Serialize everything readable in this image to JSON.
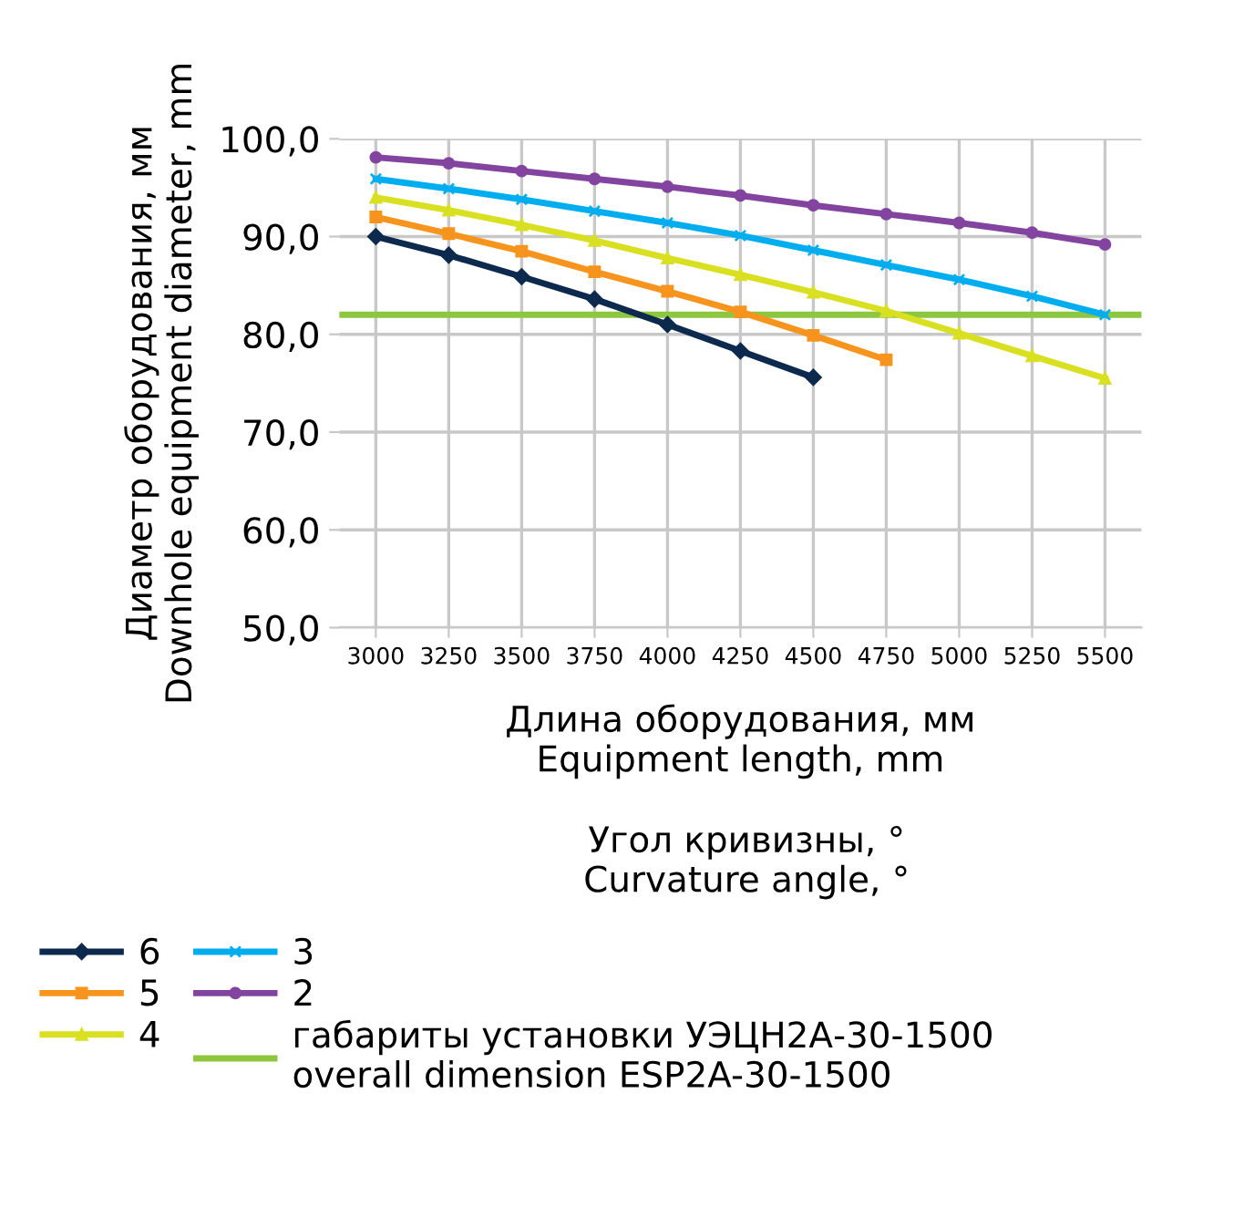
{
  "chart_data": {
    "type": "line",
    "xlabel": "Длина оборудования, мм\nEquipment length, mm",
    "ylabel": "Диаметр оборудования, мм\nDownhole equipment diameter, mm",
    "legend_title": "Угол кривизны, °\nCurvature angle, °",
    "x": [
      3000,
      3250,
      3500,
      3750,
      4000,
      4250,
      4500,
      4750,
      5000,
      5250,
      5500
    ],
    "series": [
      {
        "name": "6",
        "color": "#0d2a4e",
        "marker": "diamond",
        "values": [
          90.0,
          88.1,
          85.9,
          83.6,
          81.0,
          78.3,
          75.6,
          null,
          null,
          null,
          null
        ]
      },
      {
        "name": "5",
        "color": "#f7941d",
        "marker": "square",
        "values": [
          92.0,
          90.3,
          88.5,
          86.4,
          84.4,
          82.3,
          79.9,
          77.4,
          null,
          null,
          null
        ]
      },
      {
        "name": "4",
        "color": "#d9e021",
        "marker": "triangle",
        "values": [
          94.0,
          92.7,
          91.2,
          89.6,
          87.8,
          86.1,
          84.3,
          82.4,
          80.1,
          77.8,
          75.5
        ]
      },
      {
        "name": "3",
        "color": "#00aeef",
        "marker": "cross",
        "values": [
          95.9,
          94.9,
          93.8,
          92.6,
          91.4,
          90.1,
          88.6,
          87.1,
          85.6,
          83.9,
          82.0
        ]
      },
      {
        "name": "2",
        "color": "#8344a0",
        "marker": "circle",
        "values": [
          98.1,
          97.5,
          96.7,
          95.9,
          95.1,
          94.2,
          93.2,
          92.3,
          91.4,
          90.4,
          89.2
        ]
      }
    ],
    "ref_lines": [
      {
        "axis": "y",
        "value": 82.0,
        "label": "габариты установки УЭЦН2А-30-1500\noverall dimension ESP2A-30-1500",
        "color": "#8dc63f"
      }
    ],
    "xlim": [
      2875,
      5625
    ],
    "xticks": [
      3000,
      3250,
      3500,
      3750,
      4000,
      4250,
      4500,
      4750,
      5000,
      5250,
      5500
    ],
    "ylim": [
      50,
      100
    ],
    "yticks": [
      {
        "value": 50,
        "label": "50,0"
      },
      {
        "value": 60,
        "label": "60,0"
      },
      {
        "value": 70,
        "label": "70,0"
      },
      {
        "value": 80,
        "label": "80,0"
      },
      {
        "value": 90,
        "label": "90,0"
      },
      {
        "value": 100,
        "label": "100,0"
      }
    ],
    "grid": true,
    "legend": "bottom",
    "line_style": "solid"
  }
}
